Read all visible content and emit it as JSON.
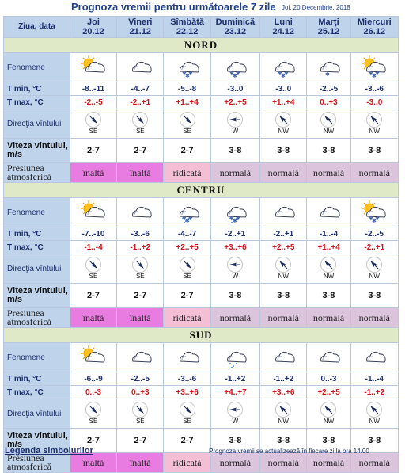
{
  "title": "Prognoza vremii pentru următoarele 7 zile",
  "date_info": "Joi, 20 Decembrie, 2018",
  "header_label": "Ziua, data",
  "row_labels": {
    "fenomene": "Fenomene",
    "tmin": "T min, °C",
    "tmax": "T max, °C",
    "directia": "Direcţia vîntului",
    "viteza": "Viteza vîntului, m/s",
    "presiunea": "Presiunea atmosferică"
  },
  "days": [
    {
      "name": "Joi",
      "date": "20.12"
    },
    {
      "name": "Vineri",
      "date": "21.12"
    },
    {
      "name": "Sîmbătă",
      "date": "22.12"
    },
    {
      "name": "Duminică",
      "date": "23.12"
    },
    {
      "name": "Luni",
      "date": "24.12"
    },
    {
      "name": "Marţi",
      "date": "25.12"
    },
    {
      "name": "Miercuri",
      "date": "26.12"
    }
  ],
  "regions": [
    {
      "name": "NORD",
      "icons": [
        "sun-cloud",
        "cloud",
        "cloud-snow",
        "cloud-snow",
        "cloud-snow",
        "cloud-snow-light",
        "sun-cloud-snow"
      ],
      "tmin": [
        "-8..-11",
        "-4..-7",
        "-5..-8",
        "-3..0",
        "-3..0",
        "-2..-5",
        "-3..-6"
      ],
      "tmax": [
        "-2..-5",
        "-2..+1",
        "+1..+4",
        "+2..+5",
        "+1..+4",
        "0..+3",
        "-3..0"
      ],
      "dir": [
        "SE",
        "SE",
        "SE",
        "W",
        "NW",
        "NW",
        "NW"
      ],
      "dir_rot": [
        135,
        135,
        135,
        270,
        315,
        315,
        315
      ],
      "wind": [
        "2-7",
        "2-7",
        "2-7",
        "3-8",
        "3-8",
        "3-8",
        "3-8"
      ],
      "pres": [
        "înaltă",
        "înaltă",
        "ridicată",
        "normală",
        "normală",
        "normală",
        "normală"
      ],
      "pres_class": [
        "p-inalta",
        "p-inalta",
        "p-ridicata",
        "p-normala",
        "p-normala",
        "p-normala",
        "p-normala"
      ]
    },
    {
      "name": "CENTRU",
      "icons": [
        "sun-cloud",
        "cloud",
        "cloud-rainsnow",
        "cloud-rainsnow",
        "cloud",
        "cloud",
        "sun-cloud-snow"
      ],
      "tmin": [
        "-7..-10",
        "-3..-6",
        "-4..-7",
        "-2..+1",
        "-2..+1",
        "-1..-4",
        "-2..-5"
      ],
      "tmax": [
        "-1..-4",
        "-1..+2",
        "+2..+5",
        "+3..+6",
        "+2..+5",
        "+1..+4",
        "-2..+1"
      ],
      "dir": [
        "SE",
        "SE",
        "SE",
        "W",
        "NW",
        "NW",
        "NW"
      ],
      "dir_rot": [
        135,
        135,
        135,
        270,
        315,
        315,
        315
      ],
      "wind": [
        "2-7",
        "2-7",
        "2-7",
        "3-8",
        "3-8",
        "3-8",
        "3-8"
      ],
      "pres": [
        "înaltă",
        "înaltă",
        "ridicată",
        "normală",
        "normală",
        "normală",
        "normală"
      ],
      "pres_class": [
        "p-inalta",
        "p-inalta",
        "p-ridicata",
        "p-normala",
        "p-normala",
        "p-normala",
        "p-normala"
      ]
    },
    {
      "name": "SUD",
      "icons": [
        "sun-cloud",
        "cloud",
        "cloud",
        "cloud-rain",
        "cloud",
        "cloud",
        "cloud"
      ],
      "tmin": [
        "-6..-9",
        "-2..-5",
        "-3..-6",
        "-1..+2",
        "-1..+2",
        "0..-3",
        "-1..-4"
      ],
      "tmax": [
        "0..-3",
        "0..+3",
        "+3..+6",
        "+4..+7",
        "+3..+6",
        "+2..+5",
        "-1..+2"
      ],
      "dir": [
        "SE",
        "SE",
        "SE",
        "W",
        "NW",
        "NW",
        "NW"
      ],
      "dir_rot": [
        135,
        135,
        135,
        270,
        315,
        315,
        315
      ],
      "wind": [
        "2-7",
        "2-7",
        "2-7",
        "3-8",
        "3-8",
        "3-8",
        "3-8"
      ],
      "pres": [
        "înaltă",
        "înaltă",
        "ridicată",
        "normală",
        "normală",
        "normală",
        "normală"
      ],
      "pres_class": [
        "p-inalta",
        "p-inalta",
        "p-ridicata",
        "p-normala",
        "p-normala",
        "p-normala",
        "p-normala"
      ]
    }
  ],
  "footer": {
    "legend_link": "Legenda simbolurilor",
    "update_note": "Prognoza vremii se actualizează în fiecare zi la ora 14.00"
  }
}
